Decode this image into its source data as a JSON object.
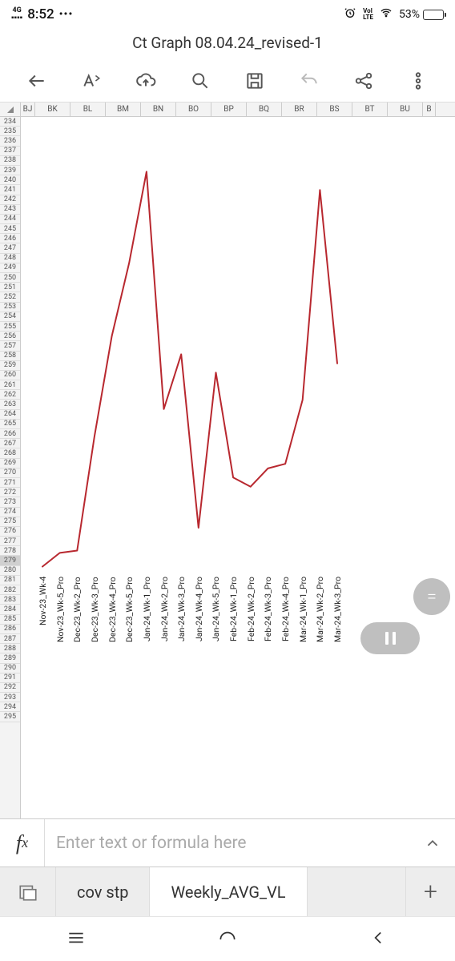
{
  "status_bar": {
    "network_type": "4G",
    "time": "8:52",
    "volte": "VoI\nLTE",
    "battery_pct": "53%",
    "battery_fill_pct": 53
  },
  "document": {
    "title": "Ct Graph 08.04.24_revised-1"
  },
  "columns": {
    "labels": [
      "BJ",
      "BK",
      "BL",
      "BM",
      "BN",
      "BO",
      "BP",
      "BQ",
      "BR",
      "BS",
      "BT",
      "BU",
      "B"
    ],
    "widths": [
      18,
      44,
      44,
      44,
      44,
      44,
      44,
      44,
      44,
      44,
      44,
      44,
      16
    ],
    "first_partial": true
  },
  "rows": {
    "start": 234,
    "end": 295,
    "selected": 279
  },
  "chart": {
    "type": "line",
    "line_color": "#b8282f",
    "line_width": 2,
    "background_color": "#ffffff",
    "y_range_abstract": [
      0,
      100
    ],
    "categories": [
      "Nov-23_Wk-4",
      "Nov-23_Wk-5_Pro",
      "Dec-23_Wk-2_Pro",
      "Dec-23_Wk-3_Pro",
      "Dec-23_Wk-4_Pro",
      "Dec-23_Wk-5_Pro",
      "Jan-24_Wk-1_Pro",
      "Jan-24_Wk-2_Pro",
      "Jan-24_Wk-3_Pro",
      "Jan-24_Wk-4_Pro",
      "Jan-24_Wk-5_Pro",
      "Feb-24_Wk-1_Pro",
      "Feb-24_Wk-2_Pro",
      "Feb-24_Wk-3_Pro",
      "Feb-24_Wk-4_Pro",
      "Mar-24_Wk-1_Pro",
      "Mar-24_Wk-2_Pro",
      "Mar-24_Wk-3_Pro"
    ],
    "values_pct_from_top": [
      98.5,
      95.5,
      95,
      70,
      48,
      32,
      12,
      64,
      52,
      90,
      56,
      79,
      81,
      77,
      76,
      62,
      16,
      54
    ]
  },
  "formula_bar": {
    "placeholder": "Enter text or formula here"
  },
  "tabs": {
    "items": [
      "cov stp",
      "Weekly_AVG_VL"
    ],
    "active_index": 1
  }
}
